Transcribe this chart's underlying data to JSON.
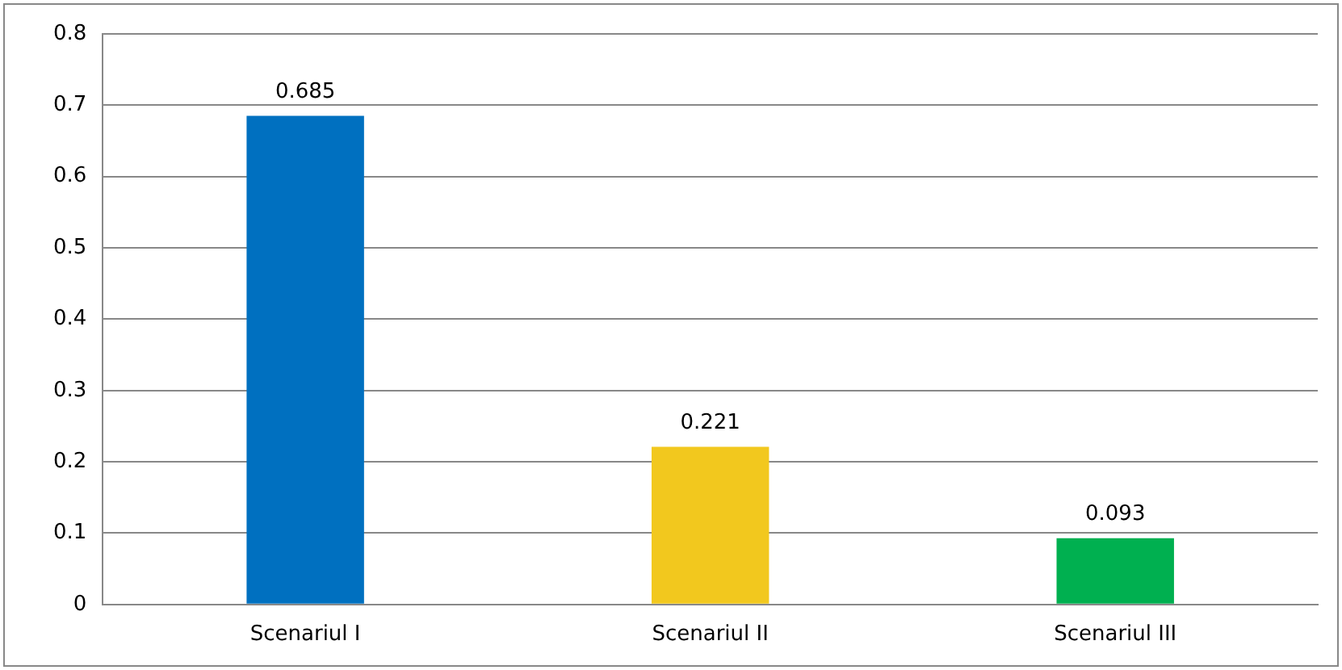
{
  "chart_data": {
    "type": "bar",
    "categories": [
      "Scenariul I",
      "Scenariul II",
      "Scenariul III"
    ],
    "values": [
      0.685,
      0.221,
      0.093
    ],
    "colors": [
      "#0070c0",
      "#f2c81e",
      "#00b050"
    ],
    "ylim": [
      0,
      0.8
    ],
    "yticks": [
      0,
      0.1,
      0.2,
      0.3,
      0.4,
      0.5,
      0.6,
      0.7,
      0.8
    ],
    "grid": "y",
    "data_labels": true
  }
}
